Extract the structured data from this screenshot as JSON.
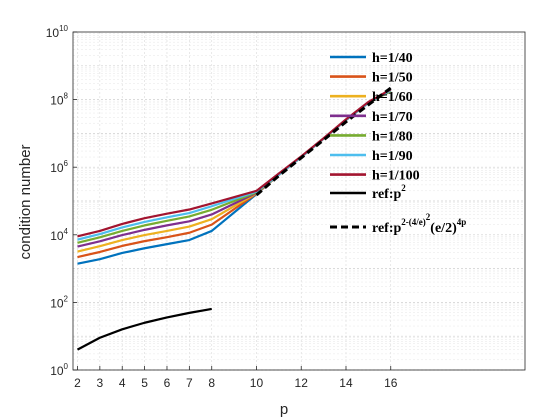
{
  "chart_data": {
    "type": "line",
    "title": "",
    "xlabel": "p",
    "ylabel": "condition number",
    "yscale": "log",
    "ylim": [
      1,
      10000000000
    ],
    "x_ticks": [
      2,
      3,
      4,
      5,
      6,
      7,
      8,
      10,
      12,
      14,
      16
    ],
    "y_ticks": [
      {
        "base": "10",
        "exp": "0"
      },
      {
        "base": "10",
        "exp": "2"
      },
      {
        "base": "10",
        "exp": "4"
      },
      {
        "base": "10",
        "exp": "6"
      },
      {
        "base": "10",
        "exp": "8"
      },
      {
        "base": "10",
        "exp": "10"
      }
    ],
    "grid": true,
    "legend_position": "top-right",
    "series": [
      {
        "name": "h=1/40",
        "color": "#0072BD",
        "style": "solid",
        "x": [
          2,
          3,
          4,
          5,
          6,
          7,
          8,
          10,
          11,
          12,
          13,
          14,
          15,
          16
        ],
        "y": [
          1400,
          1900,
          2900,
          4000,
          5300,
          7000,
          13000,
          160000,
          600000,
          2000000,
          7000000,
          25000000,
          80000000,
          180000000
        ]
      },
      {
        "name": "h=1/50",
        "color": "#D95319",
        "style": "solid",
        "x": [
          2,
          3,
          4,
          5,
          6,
          7,
          8,
          10,
          11,
          12,
          13,
          14,
          15,
          16
        ],
        "y": [
          2200,
          3100,
          4700,
          6500,
          8500,
          11500,
          20000,
          165000,
          600000,
          2000000,
          7000000,
          25000000,
          80000000,
          180000000
        ]
      },
      {
        "name": "h=1/60",
        "color": "#EDB120",
        "style": "solid",
        "x": [
          2,
          3,
          4,
          5,
          6,
          7,
          8,
          10,
          11,
          12,
          13,
          14,
          15,
          16
        ],
        "y": [
          3200,
          4600,
          7000,
          9800,
          13000,
          17500,
          29000,
          170000,
          600000,
          2000000,
          7000000,
          25000000,
          80000000,
          180000000
        ]
      },
      {
        "name": "h=1/70",
        "color": "#7E2F8E",
        "style": "solid",
        "x": [
          2,
          3,
          4,
          5,
          6,
          7,
          8,
          10,
          11,
          12,
          13,
          14,
          15,
          16
        ],
        "y": [
          4500,
          6400,
          9800,
          14000,
          19000,
          25000,
          40000,
          175000,
          600000,
          2000000,
          7000000,
          25000000,
          80000000,
          180000000
        ]
      },
      {
        "name": "h=1/80",
        "color": "#77AC30",
        "style": "solid",
        "x": [
          2,
          3,
          4,
          5,
          6,
          7,
          8,
          10,
          11,
          12,
          13,
          14,
          15,
          16
        ],
        "y": [
          5800,
          8400,
          13000,
          19000,
          26000,
          35000,
          55000,
          180000,
          600000,
          2000000,
          7000000,
          25000000,
          80000000,
          180000000
        ]
      },
      {
        "name": "h=1/90",
        "color": "#4DBEEE",
        "style": "solid",
        "x": [
          2,
          3,
          4,
          5,
          6,
          7,
          8,
          10,
          11,
          12,
          13,
          14,
          15,
          16
        ],
        "y": [
          7200,
          10500,
          16500,
          24000,
          33000,
          44000,
          70000,
          190000,
          600000,
          2000000,
          7000000,
          25000000,
          80000000,
          190000000
        ]
      },
      {
        "name": "h=1/100",
        "color": "#A2142F",
        "style": "solid",
        "x": [
          2,
          3,
          4,
          5,
          6,
          7,
          8,
          10,
          11,
          12,
          13,
          14,
          15,
          16
        ],
        "y": [
          9000,
          13000,
          21000,
          31000,
          42000,
          56000,
          85000,
          200000,
          650000,
          2100000,
          7200000,
          26000000,
          85000000,
          200000000
        ]
      },
      {
        "name": "ref:p",
        "name_sup": "2",
        "color": "#000000",
        "style": "solid",
        "x": [
          2,
          3,
          4,
          5,
          6,
          7,
          8
        ],
        "y": [
          4,
          9,
          16,
          25,
          36,
          49,
          64
        ]
      },
      {
        "name": "ref:p",
        "name_sup": "2-(4/e)",
        "name_sup2": "2",
        "name_mid": "(e/2)",
        "name_sup3": "4p",
        "color": "#000000",
        "style": "dashed",
        "x": [
          10,
          11,
          12,
          13,
          14,
          15,
          16
        ],
        "y": [
          150000,
          560000,
          1900000,
          6400000,
          22000000,
          70000000,
          220000000
        ]
      }
    ]
  }
}
